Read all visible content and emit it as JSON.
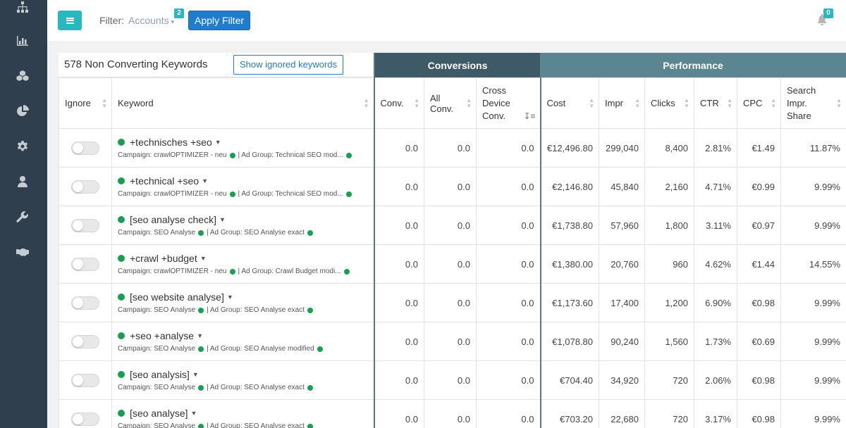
{
  "sidebar": {
    "icons": [
      "sitemap-icon",
      "bar-chart-icon",
      "cubes-icon",
      "pie-chart-icon",
      "gear-icon",
      "user-icon",
      "wrench-icon",
      "handshake-icon"
    ]
  },
  "topbar": {
    "filter_label": "Filter:",
    "filter_value": "Accounts",
    "filter_badge": "2",
    "apply_label": "Apply Filter",
    "notification_count": "0"
  },
  "table": {
    "title": "578 Non Converting Keywords",
    "show_ignored_label": "Show ignored keywords",
    "group_conversions": "Conversions",
    "group_performance": "Performance",
    "columns": [
      "Ignore",
      "Keyword",
      "Conv.",
      "All Conv.",
      "Cross Device Conv.",
      "Cost",
      "Impr",
      "Clicks",
      "CTR",
      "CPC",
      "Search Impr. Share"
    ],
    "rows": [
      {
        "keyword": "+technisches +seo",
        "campaign": "Campaign: crawlOPTIMIZER - neu",
        "adgroup": "| Ad Group: Technical SEO mod...",
        "conv": "0.0",
        "all_conv": "0.0",
        "cross": "0.0",
        "cost": "€12,496.80",
        "impr": "299,040",
        "clicks": "8,400",
        "ctr": "2.81%",
        "cpc": "€1.49",
        "share": "11.87%"
      },
      {
        "keyword": "+technical +seo",
        "campaign": "Campaign: crawlOPTIMIZER - neu",
        "adgroup": "| Ad Group: Technical SEO mod...",
        "conv": "0.0",
        "all_conv": "0.0",
        "cross": "0.0",
        "cost": "€2,146.80",
        "impr": "45,840",
        "clicks": "2,160",
        "ctr": "4.71%",
        "cpc": "€0.99",
        "share": "9.99%"
      },
      {
        "keyword": "[seo analyse check]",
        "campaign": "Campaign: SEO Analyse",
        "adgroup": "| Ad Group: SEO Analyse exact",
        "conv": "0.0",
        "all_conv": "0.0",
        "cross": "0.0",
        "cost": "€1,738.80",
        "impr": "57,960",
        "clicks": "1,800",
        "ctr": "3.11%",
        "cpc": "€0.97",
        "share": "9.99%"
      },
      {
        "keyword": "+crawl +budget",
        "campaign": "Campaign: crawlOPTIMIZER - neu",
        "adgroup": "| Ad Group: Crawl Budget modi...",
        "conv": "0.0",
        "all_conv": "0.0",
        "cross": "0.0",
        "cost": "€1,380.00",
        "impr": "20,760",
        "clicks": "960",
        "ctr": "4.62%",
        "cpc": "€1.44",
        "share": "14.55%"
      },
      {
        "keyword": "[seo website analyse]",
        "campaign": "Campaign: SEO Analyse",
        "adgroup": "| Ad Group: SEO Analyse exact",
        "conv": "0.0",
        "all_conv": "0.0",
        "cross": "0.0",
        "cost": "€1,173.60",
        "impr": "17,400",
        "clicks": "1,200",
        "ctr": "6.90%",
        "cpc": "€0.98",
        "share": "9.99%"
      },
      {
        "keyword": "+seo +analyse",
        "campaign": "Campaign: SEO Analyse",
        "adgroup": "| Ad Group: SEO Analyse modified",
        "conv": "0.0",
        "all_conv": "0.0",
        "cross": "0.0",
        "cost": "€1,078.80",
        "impr": "90,240",
        "clicks": "1,560",
        "ctr": "1.73%",
        "cpc": "€0.69",
        "share": "9.99%"
      },
      {
        "keyword": "[seo analysis]",
        "campaign": "Campaign: SEO Analyse",
        "adgroup": "| Ad Group: SEO Analyse exact",
        "conv": "0.0",
        "all_conv": "0.0",
        "cross": "0.0",
        "cost": "€704.40",
        "impr": "34,920",
        "clicks": "720",
        "ctr": "2.06%",
        "cpc": "€0.98",
        "share": "9.99%"
      },
      {
        "keyword": "[seo analyse]",
        "campaign": "Campaign: SEO Analyse",
        "adgroup": "| Ad Group: SEO Analyse exact",
        "conv": "0.0",
        "all_conv": "0.0",
        "cross": "0.0",
        "cost": "€703.20",
        "impr": "22,680",
        "clicks": "720",
        "ctr": "3.17%",
        "cpc": "€0.98",
        "share": "9.99%"
      }
    ]
  },
  "colors": {
    "sidebar": "#2f3f4e",
    "accent": "#26b9c0",
    "primary": "#1f7ccf",
    "conversions_header": "#3e5a66",
    "performance_header": "#5a8591",
    "status_green": "#16a050"
  }
}
